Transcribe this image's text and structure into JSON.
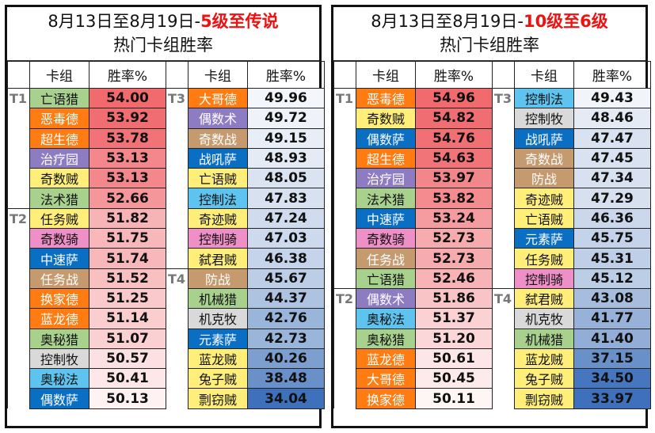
{
  "colors": {
    "hunter": "#a9d18e",
    "druid": "#ff7c12",
    "paladin_heal_druid": "#8e7cc3",
    "rogue": "#ffef7a",
    "paladin": "#ef8fc7",
    "shaman": "#0a6fc2",
    "warrior": "#c59a6e",
    "priest": "#d9d9d9",
    "mage": "#5ec3ef",
    "title_highlight": "#ee1111"
  },
  "left": {
    "title_prefix": "8月13日至8月19日-",
    "title_highlight": "5级至传说",
    "subtitle": "热门卡组胜率",
    "headers": [
      "卡组",
      "胜率%",
      "卡组",
      "胜率%"
    ],
    "col1": [
      {
        "tier": "T1",
        "deck": "亡语猎",
        "rate": "54.00",
        "deck_bg": "#a9d18e",
        "deck_fg": "#111",
        "rate_bg": "#f06a6e"
      },
      {
        "tier": "",
        "deck": "恶毒德",
        "rate": "53.92",
        "deck_bg": "#ff7c12",
        "deck_fg": "#fff",
        "rate_bg": "#f06e72"
      },
      {
        "tier": "",
        "deck": "超生德",
        "rate": "53.78",
        "deck_bg": "#ff7c12",
        "deck_fg": "#fff",
        "rate_bg": "#f17377"
      },
      {
        "tier": "",
        "deck": "治疗园",
        "rate": "53.13",
        "deck_bg": "#8e7cc3",
        "deck_fg": "#fff",
        "rate_bg": "#f3878b"
      },
      {
        "tier": "",
        "deck": "奇数贼",
        "rate": "53.13",
        "deck_bg": "#ffef7a",
        "deck_fg": "#111",
        "rate_bg": "#f3878b"
      },
      {
        "tier": "",
        "deck": "法术猎",
        "rate": "52.66",
        "deck_bg": "#a9d18e",
        "deck_fg": "#111",
        "rate_bg": "#f5969a"
      },
      {
        "tier": "T2",
        "deck": "任务贼",
        "rate": "51.82",
        "deck_bg": "#ffef7a",
        "deck_fg": "#111",
        "rate_bg": "#f7b4b7"
      },
      {
        "tier": "",
        "deck": "奇数骑",
        "rate": "51.75",
        "deck_bg": "#ef8fc7",
        "deck_fg": "#111",
        "rate_bg": "#f8b7ba"
      },
      {
        "tier": "",
        "deck": "中速萨",
        "rate": "51.74",
        "deck_bg": "#0a6fc2",
        "deck_fg": "#fff",
        "rate_bg": "#f8b8bb"
      },
      {
        "tier": "",
        "deck": "任务战",
        "rate": "51.52",
        "deck_bg": "#c59a6e",
        "deck_fg": "#fff",
        "rate_bg": "#f9c0c2"
      },
      {
        "tier": "",
        "deck": "换家德",
        "rate": "51.25",
        "deck_bg": "#ff7c12",
        "deck_fg": "#fff",
        "rate_bg": "#fac9cb"
      },
      {
        "tier": "",
        "deck": "蓝龙德",
        "rate": "51.14",
        "deck_bg": "#ff7c12",
        "deck_fg": "#fff",
        "rate_bg": "#facdcf"
      },
      {
        "tier": "",
        "deck": "奥秘猎",
        "rate": "51.07",
        "deck_bg": "#a9d18e",
        "deck_fg": "#111",
        "rate_bg": "#fbd0d2"
      },
      {
        "tier": "",
        "deck": "控制牧",
        "rate": "50.57",
        "deck_bg": "#d9d9d9",
        "deck_fg": "#111",
        "rate_bg": "#fce1e2"
      },
      {
        "tier": "",
        "deck": "奥秘法",
        "rate": "50.41",
        "deck_bg": "#5ec3ef",
        "deck_fg": "#111",
        "rate_bg": "#fde7e8"
      },
      {
        "tier": "",
        "deck": "偶数萨",
        "rate": "50.13",
        "deck_bg": "#0a6fc2",
        "deck_fg": "#fff",
        "rate_bg": "#fef2f3"
      }
    ],
    "col2": [
      {
        "tier": "T3",
        "deck": "大哥德",
        "rate": "49.96",
        "deck_bg": "#ff7c12",
        "deck_fg": "#fff",
        "rate_bg": "#f3f6fb"
      },
      {
        "tier": "",
        "deck": "偶数术",
        "rate": "49.72",
        "deck_bg": "#8e7cc3",
        "deck_fg": "#fff",
        "rate_bg": "#eff3f9"
      },
      {
        "tier": "",
        "deck": "奇数战",
        "rate": "49.15",
        "deck_bg": "#c59a6e",
        "deck_fg": "#fff",
        "rate_bg": "#e8eef7"
      },
      {
        "tier": "",
        "deck": "战吼萨",
        "rate": "48.93",
        "deck_bg": "#0a6fc2",
        "deck_fg": "#fff",
        "rate_bg": "#e5ebf5"
      },
      {
        "tier": "",
        "deck": "亡语贼",
        "rate": "48.05",
        "deck_bg": "#ffef7a",
        "deck_fg": "#111",
        "rate_bg": "#dae3f1"
      },
      {
        "tier": "",
        "deck": "控制法",
        "rate": "47.83",
        "deck_bg": "#5ec3ef",
        "deck_fg": "#111",
        "rate_bg": "#d7e1f0"
      },
      {
        "tier": "",
        "deck": "奇迹贼",
        "rate": "47.24",
        "deck_bg": "#ffef7a",
        "deck_fg": "#111",
        "rate_bg": "#d0dcee"
      },
      {
        "tier": "",
        "deck": "控制骑",
        "rate": "47.03",
        "deck_bg": "#ef8fc7",
        "deck_fg": "#111",
        "rate_bg": "#cdd9ec"
      },
      {
        "tier": "",
        "deck": "弑君贼",
        "rate": "46.38",
        "deck_bg": "#ffef7a",
        "deck_fg": "#111",
        "rate_bg": "#c5d4ea"
      },
      {
        "tier": "T4",
        "deck": "防战",
        "rate": "45.67",
        "deck_bg": "#c59a6e",
        "deck_fg": "#fff",
        "rate_bg": "#bccde6"
      },
      {
        "tier": "",
        "deck": "机械猎",
        "rate": "44.37",
        "deck_bg": "#a9d18e",
        "deck_fg": "#111",
        "rate_bg": "#adc3e1"
      },
      {
        "tier": "",
        "deck": "机克牧",
        "rate": "42.76",
        "deck_bg": "#d9d9d9",
        "deck_fg": "#111",
        "rate_bg": "#9ab5da"
      },
      {
        "tier": "",
        "deck": "元素萨",
        "rate": "42.73",
        "deck_bg": "#0a6fc2",
        "deck_fg": "#fff",
        "rate_bg": "#9ab5da"
      },
      {
        "tier": "",
        "deck": "蓝龙贼",
        "rate": "40.26",
        "deck_bg": "#ffef7a",
        "deck_fg": "#111",
        "rate_bg": "#7d9fd0"
      },
      {
        "tier": "",
        "deck": "兔子贼",
        "rate": "38.48",
        "deck_bg": "#ffef7a",
        "deck_fg": "#111",
        "rate_bg": "#6990c9"
      },
      {
        "tier": "",
        "deck": "剽窃贼",
        "rate": "34.04",
        "deck_bg": "#ffef7a",
        "deck_fg": "#111",
        "rate_bg": "#3f70bb"
      }
    ]
  },
  "right": {
    "title_prefix": "8月13日至8月19日-",
    "title_highlight": "10级至6级",
    "subtitle": "热门卡组胜率",
    "headers": [
      "卡组",
      "胜率%",
      "卡组",
      "胜率%"
    ],
    "col1": [
      {
        "tier": "T1",
        "deck": "恶毒德",
        "rate": "54.96",
        "deck_bg": "#ff7c12",
        "deck_fg": "#fff",
        "rate_bg": "#f06a6e"
      },
      {
        "tier": "",
        "deck": "奇数贼",
        "rate": "54.82",
        "deck_bg": "#ffef7a",
        "deck_fg": "#111",
        "rate_bg": "#f06e72"
      },
      {
        "tier": "",
        "deck": "偶数萨",
        "rate": "54.76",
        "deck_bg": "#0a6fc2",
        "deck_fg": "#fff",
        "rate_bg": "#f07074"
      },
      {
        "tier": "",
        "deck": "超生德",
        "rate": "54.63",
        "deck_bg": "#ff7c12",
        "deck_fg": "#fff",
        "rate_bg": "#f17478"
      },
      {
        "tier": "",
        "deck": "治疗园",
        "rate": "53.97",
        "deck_bg": "#8e7cc3",
        "deck_fg": "#fff",
        "rate_bg": "#f2878b"
      },
      {
        "tier": "",
        "deck": "法术猎",
        "rate": "53.82",
        "deck_bg": "#a9d18e",
        "deck_fg": "#111",
        "rate_bg": "#f38b8f"
      },
      {
        "tier": "",
        "deck": "中速萨",
        "rate": "53.24",
        "deck_bg": "#0a6fc2",
        "deck_fg": "#fff",
        "rate_bg": "#f49c9f"
      },
      {
        "tier": "",
        "deck": "奇数骑",
        "rate": "52.73",
        "deck_bg": "#ef8fc7",
        "deck_fg": "#111",
        "rate_bg": "#f6abae"
      },
      {
        "tier": "",
        "deck": "任务战",
        "rate": "52.73",
        "deck_bg": "#c59a6e",
        "deck_fg": "#fff",
        "rate_bg": "#f6abae"
      },
      {
        "tier": "",
        "deck": "亡语猎",
        "rate": "52.46",
        "deck_bg": "#a9d18e",
        "deck_fg": "#111",
        "rate_bg": "#f7b3b6"
      },
      {
        "tier": "T2",
        "deck": "偶数术",
        "rate": "51.86",
        "deck_bg": "#8e7cc3",
        "deck_fg": "#fff",
        "rate_bg": "#f8c4c6"
      },
      {
        "tier": "",
        "deck": "奥秘法",
        "rate": "51.37",
        "deck_bg": "#5ec3ef",
        "deck_fg": "#111",
        "rate_bg": "#fad2d4"
      },
      {
        "tier": "",
        "deck": "奥秘猎",
        "rate": "51.20",
        "deck_bg": "#a9d18e",
        "deck_fg": "#111",
        "rate_bg": "#fbd7d9"
      },
      {
        "tier": "",
        "deck": "蓝龙德",
        "rate": "50.61",
        "deck_bg": "#ff7c12",
        "deck_fg": "#fff",
        "rate_bg": "#fce6e7"
      },
      {
        "tier": "",
        "deck": "大哥德",
        "rate": "50.45",
        "deck_bg": "#ff7c12",
        "deck_fg": "#fff",
        "rate_bg": "#fdebec"
      },
      {
        "tier": "",
        "deck": "换家德",
        "rate": "50.11",
        "deck_bg": "#ff7c12",
        "deck_fg": "#fff",
        "rate_bg": "#fef5f5"
      }
    ],
    "col2": [
      {
        "tier": "T3",
        "deck": "控制法",
        "rate": "49.43",
        "deck_bg": "#5ec3ef",
        "deck_fg": "#111",
        "rate_bg": "#f1f5fa"
      },
      {
        "tier": "",
        "deck": "控制牧",
        "rate": "48.46",
        "deck_bg": "#d9d9d9",
        "deck_fg": "#111",
        "rate_bg": "#e5ebf5"
      },
      {
        "tier": "",
        "deck": "战吼萨",
        "rate": "47.47",
        "deck_bg": "#0a6fc2",
        "deck_fg": "#fff",
        "rate_bg": "#d9e2f0"
      },
      {
        "tier": "",
        "deck": "奇数战",
        "rate": "47.45",
        "deck_bg": "#c59a6e",
        "deck_fg": "#fff",
        "rate_bg": "#d9e2f0"
      },
      {
        "tier": "",
        "deck": "防战",
        "rate": "47.34",
        "deck_bg": "#c59a6e",
        "deck_fg": "#fff",
        "rate_bg": "#d7e1f0"
      },
      {
        "tier": "",
        "deck": "奇迹贼",
        "rate": "47.29",
        "deck_bg": "#ffef7a",
        "deck_fg": "#111",
        "rate_bg": "#d7e0ef"
      },
      {
        "tier": "",
        "deck": "亡语贼",
        "rate": "46.36",
        "deck_bg": "#ffef7a",
        "deck_fg": "#111",
        "rate_bg": "#cbd8eb"
      },
      {
        "tier": "",
        "deck": "元素萨",
        "rate": "45.75",
        "deck_bg": "#0a6fc2",
        "deck_fg": "#fff",
        "rate_bg": "#c4d3e9"
      },
      {
        "tier": "",
        "deck": "任务贼",
        "rate": "45.31",
        "deck_bg": "#ffef7a",
        "deck_fg": "#111",
        "rate_bg": "#bfcfe7"
      },
      {
        "tier": "",
        "deck": "控制骑",
        "rate": "45.12",
        "deck_bg": "#ef8fc7",
        "deck_fg": "#111",
        "rate_bg": "#bccde6"
      },
      {
        "tier": "T4",
        "deck": "弑君贼",
        "rate": "43.08",
        "deck_bg": "#ffef7a",
        "deck_fg": "#111",
        "rate_bg": "#a6bddd"
      },
      {
        "tier": "",
        "deck": "机克牧",
        "rate": "41.77",
        "deck_bg": "#d9d9d9",
        "deck_fg": "#111",
        "rate_bg": "#97b1d8"
      },
      {
        "tier": "",
        "deck": "机械猎",
        "rate": "41.40",
        "deck_bg": "#a9d18e",
        "deck_fg": "#111",
        "rate_bg": "#93aed6"
      },
      {
        "tier": "",
        "deck": "蓝龙贼",
        "rate": "37.15",
        "deck_bg": "#ffef7a",
        "deck_fg": "#111",
        "rate_bg": "#6a90c9"
      },
      {
        "tier": "",
        "deck": "兔子贼",
        "rate": "34.50",
        "deck_bg": "#ffef7a",
        "deck_fg": "#111",
        "rate_bg": "#4676be"
      },
      {
        "tier": "",
        "deck": "剽窃贼",
        "rate": "33.97",
        "deck_bg": "#ffef7a",
        "deck_fg": "#111",
        "rate_bg": "#3f70bb"
      }
    ]
  }
}
